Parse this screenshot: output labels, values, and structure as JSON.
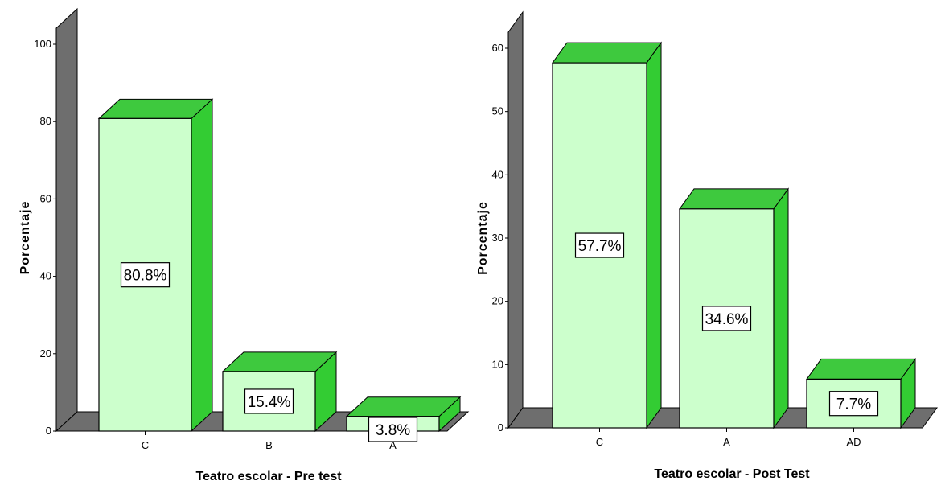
{
  "colors": {
    "bar_front": "#ccffcc",
    "bar_top": "#3ec93e",
    "bar_side": "#33cc33",
    "floor": "#6e6e6e",
    "wall": "#6e6e6e",
    "outline": "#000000"
  },
  "chart_data": [
    {
      "type": "bar",
      "title": "",
      "xlabel": "Teatro escolar - Pre test",
      "ylabel": "Porcentaje",
      "ylim": [
        0,
        100
      ],
      "yticks": [
        0,
        20,
        40,
        60,
        80,
        100
      ],
      "categories": [
        "C",
        "B",
        "A"
      ],
      "values": [
        80.8,
        15.4,
        3.8
      ],
      "data_labels": [
        "80.8%",
        "15.4%",
        "3.8%"
      ]
    },
    {
      "type": "bar",
      "title": "",
      "xlabel": "Teatro escolar - Post Test",
      "ylabel": "Porcentaje",
      "ylim": [
        0,
        60
      ],
      "yticks": [
        0,
        10,
        20,
        30,
        40,
        50,
        60
      ],
      "categories": [
        "C",
        "A",
        "AD"
      ],
      "values": [
        57.7,
        34.6,
        7.7
      ],
      "data_labels": [
        "57.7%",
        "34.6%",
        "7.7%"
      ]
    }
  ]
}
